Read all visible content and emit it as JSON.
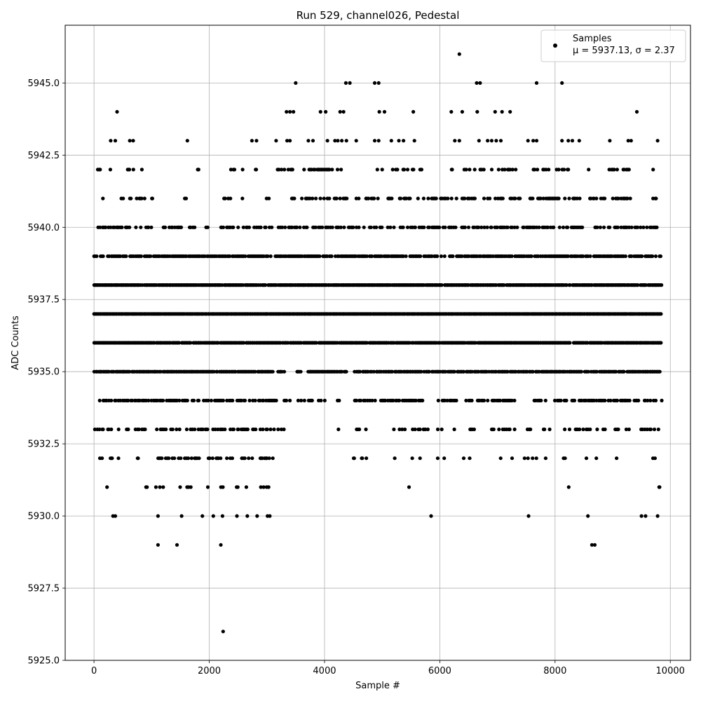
{
  "chart_data": {
    "type": "scatter",
    "title": "Run 529, channel026, Pedestal",
    "xlabel": "Sample #",
    "ylabel": "ADC Counts",
    "xlim": [
      -500,
      10350
    ],
    "ylim": [
      5925.0,
      5947.0
    ],
    "x_ticks": [
      0,
      2000,
      4000,
      6000,
      8000,
      10000
    ],
    "x_tick_labels": [
      "0",
      "2000",
      "4000",
      "6000",
      "8000",
      "10000"
    ],
    "y_ticks": [
      5925.0,
      5927.5,
      5930.0,
      5932.5,
      5935.0,
      5937.5,
      5940.0,
      5942.5,
      5945.0
    ],
    "y_tick_labels": [
      "5925.0",
      "5927.5",
      "5930.0",
      "5932.5",
      "5935.0",
      "5937.5",
      "5940.0",
      "5942.5",
      "5945.0"
    ],
    "grid": true,
    "legend_position": "top-right",
    "marker_color": "#000000",
    "series": [
      {
        "name": "Samples",
        "label_line2": "μ = 5937.13, σ = 2.37",
        "n_samples": 9855,
        "points": [
          [
            2240,
            5926
          ],
          [
            1110,
            5929
          ],
          [
            1440,
            5929
          ],
          [
            2200,
            5929
          ],
          [
            8640,
            5929
          ],
          [
            8690,
            5929
          ],
          [
            330,
            5930
          ],
          [
            370,
            5930
          ],
          [
            1110,
            5930
          ],
          [
            1520,
            5930
          ],
          [
            1880,
            5930
          ],
          [
            2070,
            5930
          ],
          [
            2230,
            5930
          ],
          [
            2480,
            5930
          ],
          [
            2660,
            5930
          ],
          [
            2830,
            5930
          ],
          [
            3010,
            5930
          ],
          [
            3050,
            5930
          ],
          [
            5850,
            5930
          ],
          [
            7540,
            5930
          ],
          [
            8570,
            5930
          ],
          [
            9500,
            5930
          ],
          [
            9570,
            5930
          ],
          [
            9780,
            5930
          ],
          [
            6340,
            5946
          ],
          [
            3500,
            5945
          ],
          [
            4370,
            5945
          ],
          [
            4440,
            5945
          ],
          [
            4870,
            5945
          ],
          [
            4940,
            5945
          ],
          [
            6640,
            5945
          ],
          [
            6700,
            5945
          ],
          [
            7680,
            5945
          ],
          [
            8120,
            5945
          ],
          [
            400,
            5944
          ],
          [
            3340,
            5944
          ],
          [
            3400,
            5944
          ],
          [
            3460,
            5944
          ],
          [
            3930,
            5944
          ],
          [
            4020,
            5944
          ],
          [
            4270,
            5944
          ],
          [
            4330,
            5944
          ],
          [
            4950,
            5944
          ],
          [
            5040,
            5944
          ],
          [
            5540,
            5944
          ],
          [
            6200,
            5944
          ],
          [
            6390,
            5944
          ],
          [
            6650,
            5944
          ],
          [
            6960,
            5944
          ],
          [
            7080,
            5944
          ],
          [
            7220,
            5944
          ],
          [
            9420,
            5944
          ],
          [
            290,
            5943
          ],
          [
            370,
            5943
          ],
          [
            620,
            5943
          ],
          [
            680,
            5943
          ],
          [
            1620,
            5943
          ],
          [
            2740,
            5943
          ],
          [
            2820,
            5943
          ],
          [
            3160,
            5943
          ],
          [
            3350,
            5943
          ],
          [
            3400,
            5943
          ],
          [
            3720,
            5943
          ],
          [
            3800,
            5943
          ],
          [
            4050,
            5943
          ],
          [
            4180,
            5943
          ],
          [
            4230,
            5943
          ],
          [
            4300,
            5943
          ],
          [
            4380,
            5943
          ],
          [
            4550,
            5943
          ],
          [
            4870,
            5943
          ],
          [
            4940,
            5943
          ],
          [
            5160,
            5943
          ],
          [
            5290,
            5943
          ],
          [
            5370,
            5943
          ],
          [
            5560,
            5943
          ],
          [
            6260,
            5943
          ],
          [
            6340,
            5943
          ],
          [
            6680,
            5943
          ],
          [
            6830,
            5943
          ],
          [
            6900,
            5943
          ],
          [
            6980,
            5943
          ],
          [
            7060,
            5943
          ],
          [
            7530,
            5943
          ],
          [
            7620,
            5943
          ],
          [
            7680,
            5943
          ],
          [
            8120,
            5943
          ],
          [
            8230,
            5943
          ],
          [
            8300,
            5943
          ],
          [
            8420,
            5943
          ],
          [
            8950,
            5943
          ],
          [
            9270,
            5943
          ],
          [
            9320,
            5943
          ],
          [
            9780,
            5943
          ]
        ],
        "bands": [
          {
            "y": 5942,
            "density": 0.35,
            "segments": [
              [
                50,
                120
              ],
              [
                250,
                300
              ],
              [
                520,
                700
              ],
              [
                830,
                900
              ],
              [
                1540,
                1560
              ],
              [
                1800,
                1820
              ],
              [
                2340,
                2500
              ],
              [
                2560,
                2600
              ],
              [
                2760,
                2820
              ],
              [
                3150,
                4400
              ],
              [
                4820,
                5700
              ],
              [
                5850,
                5870
              ],
              [
                6200,
                6900
              ],
              [
                7020,
                7350
              ],
              [
                7530,
                8300
              ],
              [
                8560,
                8620
              ],
              [
                8700,
                8720
              ],
              [
                8880,
                9300
              ],
              [
                9700,
                9760
              ]
            ]
          },
          {
            "y": 5941,
            "density": 0.45,
            "segments": [
              [
                160,
                170
              ],
              [
                480,
                900
              ],
              [
                1000,
                1020
              ],
              [
                1400,
                1420
              ],
              [
                1580,
                1650
              ],
              [
                1780,
                1850
              ],
              [
                2250,
                2400
              ],
              [
                2580,
                2600
              ],
              [
                3000,
                3050
              ],
              [
                3350,
                4600
              ],
              [
                4700,
                6200
              ],
              [
                6250,
                7400
              ],
              [
                7550,
                8200
              ],
              [
                8250,
                8450
              ],
              [
                8580,
                8900
              ],
              [
                9000,
                9350
              ],
              [
                9700,
                9850
              ]
            ]
          },
          {
            "y": 5940,
            "density": 0.55,
            "segments": [
              [
                50,
                1000
              ],
              [
                1200,
                1750
              ],
              [
                1950,
                1970
              ],
              [
                2200,
                2500
              ],
              [
                2600,
                3000
              ],
              [
                3050,
                3100
              ],
              [
                3200,
                8500
              ],
              [
                8650,
                9800
              ]
            ]
          },
          {
            "y": 5939,
            "density": 0.8,
            "segments": [
              [
                0,
                3100
              ],
              [
                3150,
                9850
              ]
            ]
          },
          {
            "y": 5938,
            "density": 0.95,
            "segments": [
              [
                0,
                9850
              ]
            ]
          },
          {
            "y": 5937,
            "density": 1.0,
            "segments": [
              [
                0,
                9850
              ]
            ]
          },
          {
            "y": 5936,
            "density": 0.95,
            "segments": [
              [
                0,
                9850
              ]
            ]
          },
          {
            "y": 5935,
            "density": 0.85,
            "segments": [
              [
                0,
                3100
              ],
              [
                3200,
                3300
              ],
              [
                3500,
                3600
              ],
              [
                3700,
                4400
              ],
              [
                4500,
                9850
              ]
            ]
          },
          {
            "y": 5934,
            "density": 0.6,
            "segments": [
              [
                0,
                3200
              ],
              [
                3300,
                3400
              ],
              [
                3550,
                3800
              ],
              [
                3900,
                4000
              ],
              [
                4150,
                4250
              ],
              [
                4500,
                5700
              ],
              [
                5950,
                6300
              ],
              [
                6450,
                7300
              ],
              [
                7600,
                7850
              ],
              [
                8000,
                8200
              ],
              [
                8300,
                9450
              ],
              [
                9550,
                9850
              ]
            ]
          },
          {
            "y": 5933,
            "density": 0.4,
            "segments": [
              [
                0,
                300
              ],
              [
                350,
                450
              ],
              [
                500,
                900
              ],
              [
                1050,
                3300
              ],
              [
                3850,
                3950
              ],
              [
                4200,
                4250
              ],
              [
                4520,
                4720
              ],
              [
                5200,
                5300
              ],
              [
                5350,
                5800
              ],
              [
                5950,
                6050
              ],
              [
                6250,
                6300
              ],
              [
                6500,
                6600
              ],
              [
                6900,
                7300
              ],
              [
                7500,
                7600
              ],
              [
                7800,
                7900
              ],
              [
                8150,
                8250
              ],
              [
                8350,
                8900
              ],
              [
                9000,
                9350
              ],
              [
                9500,
                9820
              ]
            ]
          },
          {
            "y": 5932,
            "density": 0.3,
            "segments": [
              [
                100,
                450
              ],
              [
                750,
                780
              ],
              [
                900,
                950
              ],
              [
                1080,
                1400
              ],
              [
                1450,
                1650
              ],
              [
                1700,
                1820
              ],
              [
                1900,
                2400
              ],
              [
                2450,
                2500
              ],
              [
                2550,
                2750
              ],
              [
                2800,
                3150
              ],
              [
                4020,
                4040
              ],
              [
                4500,
                4520
              ],
              [
                4600,
                4720
              ],
              [
                5200,
                5220
              ],
              [
                5500,
                5520
              ],
              [
                5570,
                5720
              ],
              [
                5950,
                6130
              ],
              [
                6420,
                6600
              ],
              [
                6650,
                6700
              ],
              [
                6950,
                7050
              ],
              [
                7250,
                7280
              ],
              [
                7450,
                7700
              ],
              [
                7800,
                7850
              ],
              [
                8150,
                8170
              ],
              [
                8330,
                8400
              ],
              [
                8550,
                8850
              ],
              [
                9050,
                9120
              ],
              [
                9420,
                9440
              ],
              [
                9700,
                9750
              ]
            ]
          },
          {
            "y": 5931,
            "density": 0.25,
            "segments": [
              [
                200,
                220
              ],
              [
                750,
                780
              ],
              [
                900,
                920
              ],
              [
                1020,
                1200
              ],
              [
                1500,
                1750
              ],
              [
                1880,
                1980
              ],
              [
                2180,
                2250
              ],
              [
                2480,
                2530
              ],
              [
                2620,
                2650
              ],
              [
                2850,
                3050
              ],
              [
                4450,
                4550
              ],
              [
                4650,
                4670
              ],
              [
                5450,
                5530
              ],
              [
                6050,
                6100
              ],
              [
                6560,
                6580
              ],
              [
                6830,
                6850
              ],
              [
                7050,
                7070
              ],
              [
                7480,
                7560
              ],
              [
                8220,
                8300
              ],
              [
                8640,
                8720
              ],
              [
                9460,
                9480
              ],
              [
                9800,
                9850
              ]
            ]
          }
        ]
      }
    ]
  }
}
